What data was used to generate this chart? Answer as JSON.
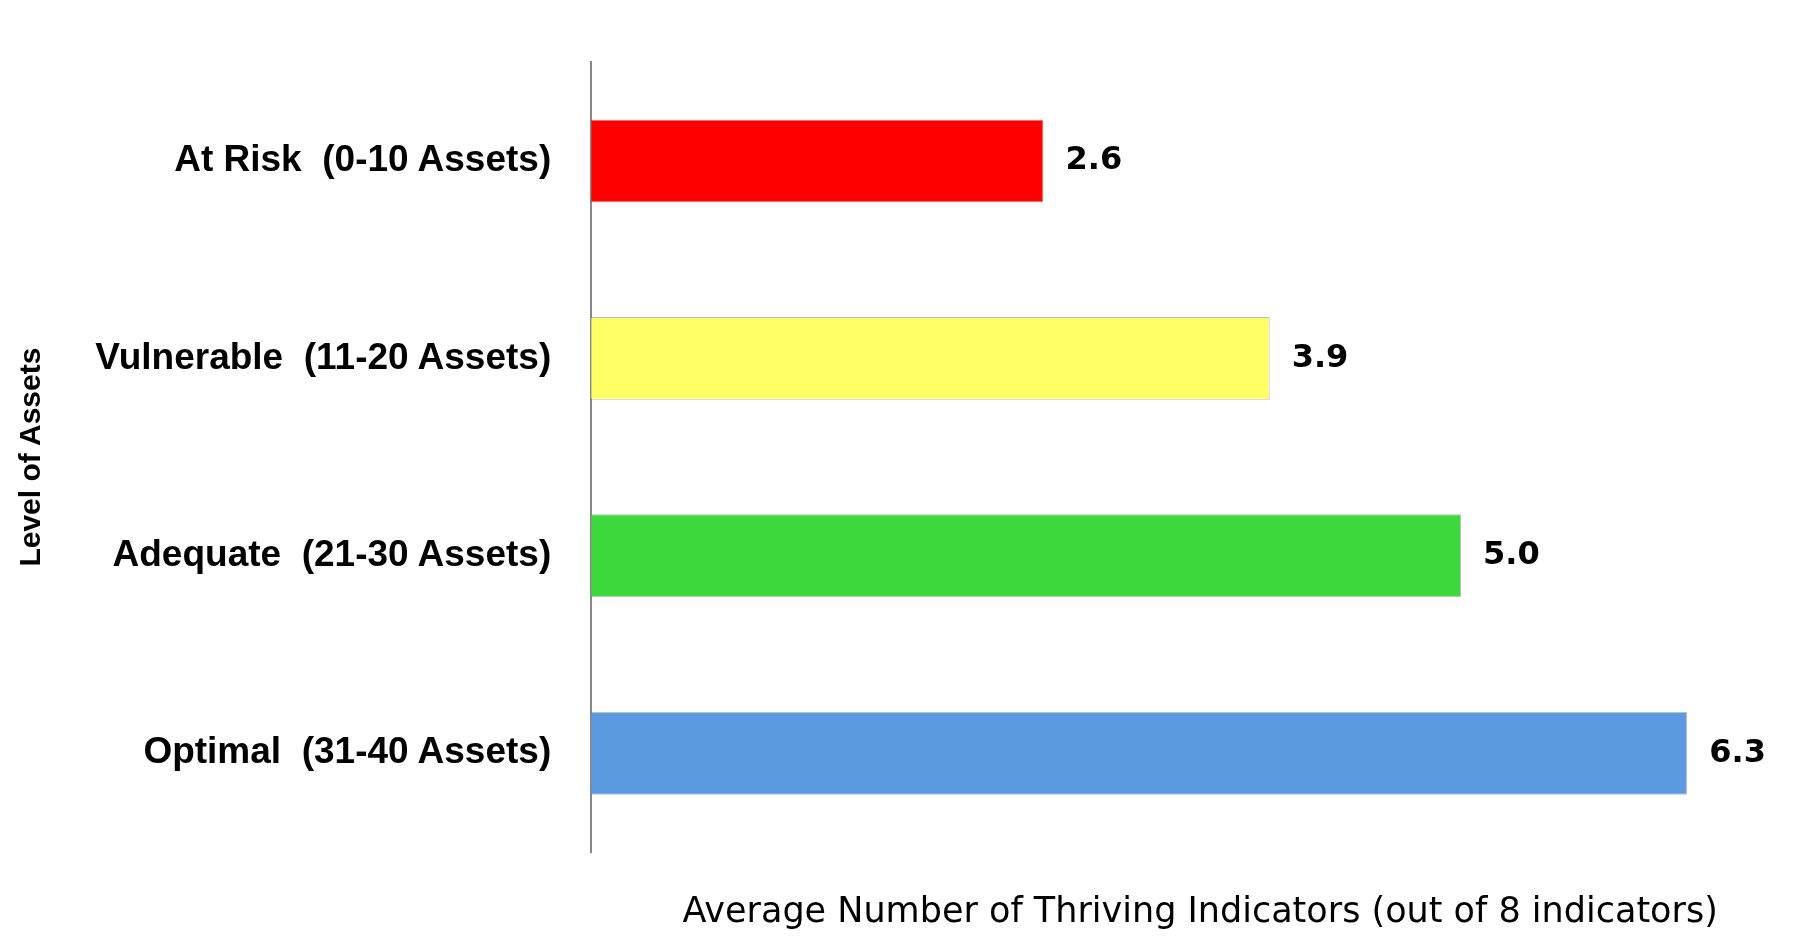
{
  "chart_data": {
    "type": "bar",
    "orientation": "horizontal",
    "categories": [
      "At Risk  (0-10 Assets)",
      "Vulnerable  (11-20 Assets)",
      "Adequate  (21-30 Assets)",
      "Optimal  (31-40 Assets)"
    ],
    "values": [
      2.6,
      3.9,
      5.0,
      6.3
    ],
    "colors": [
      "#ff0000",
      "#ffff66",
      "#3cd83c",
      "#5b9ae0"
    ],
    "value_labels": [
      "2.6",
      "3.9",
      "5.0",
      "6.3"
    ],
    "xlabel": "Average Number of Thriving Indicators (out of 8 indicators)",
    "ylabel": "Level of Assets",
    "tick_labels": "y",
    "grid": false,
    "legend": false
  }
}
